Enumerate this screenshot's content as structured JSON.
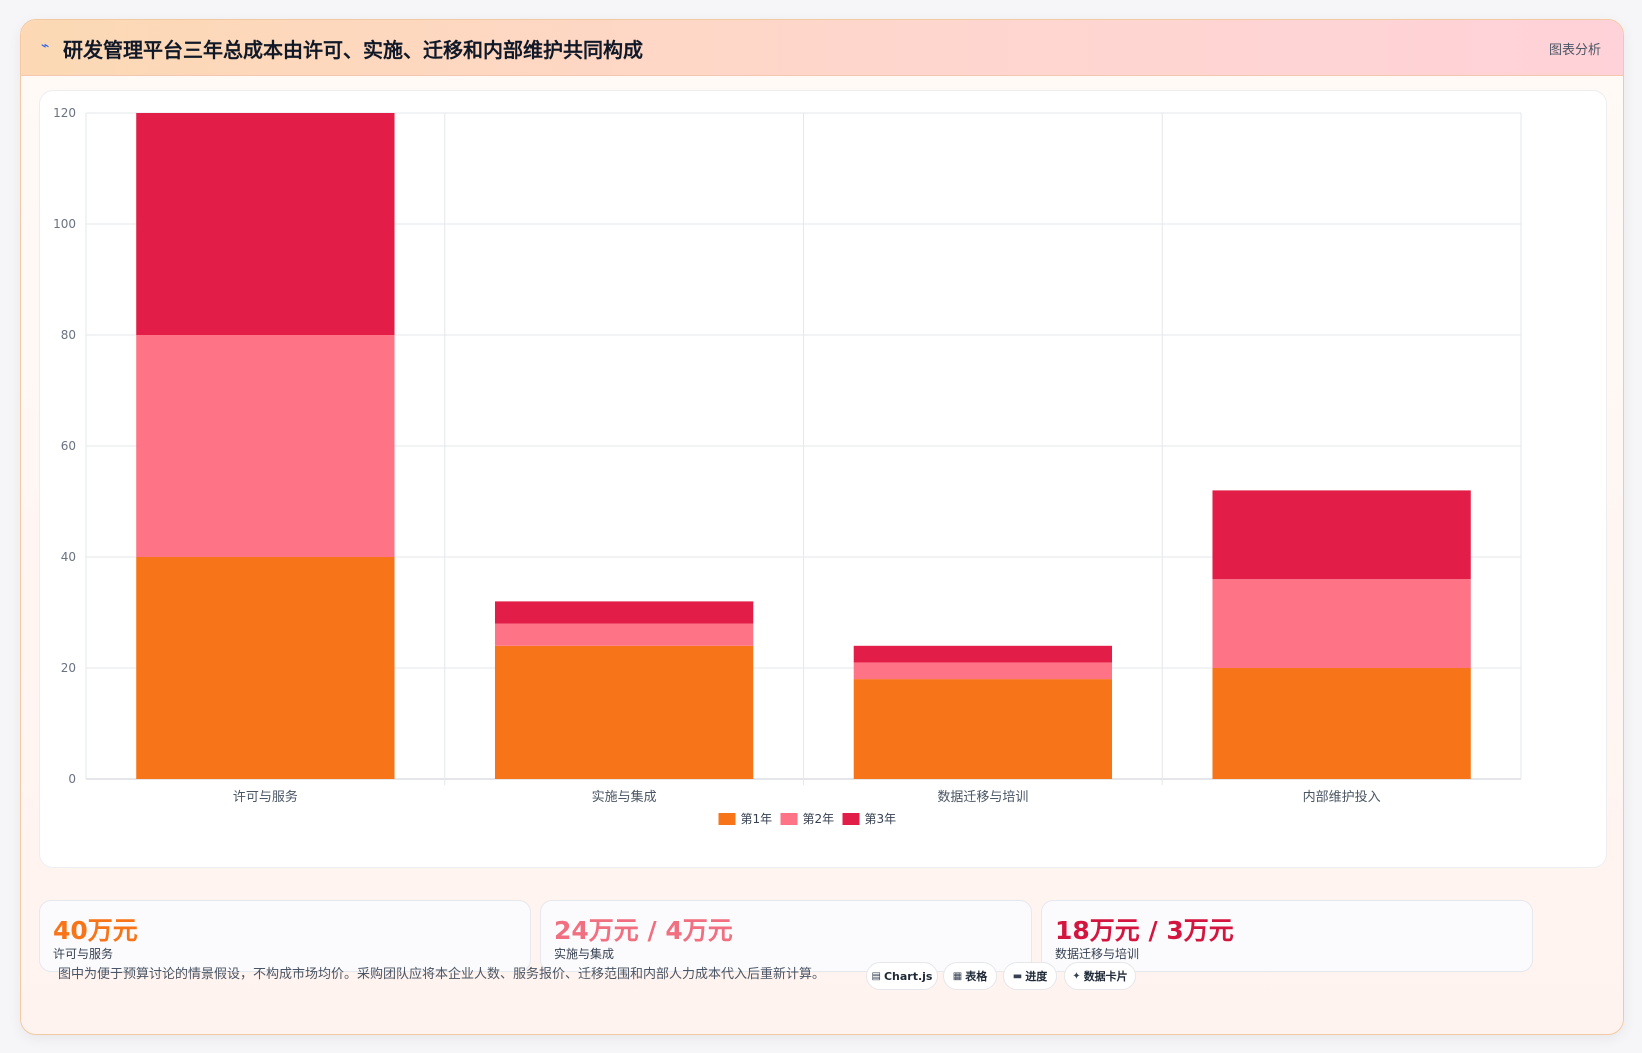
{
  "header": {
    "icon": "chart-line-icon",
    "title": "研发管理平台三年总成本由许可、实施、迁移和内部维护共同构成",
    "tag": "图表分析"
  },
  "chart_data": {
    "type": "bar",
    "stacked": true,
    "categories": [
      "许可与服务",
      "实施与集成",
      "数据迁移与培训",
      "内部维护投入"
    ],
    "series": [
      {
        "name": "第1年",
        "color": "#f77518",
        "values": [
          40,
          24,
          18,
          20
        ]
      },
      {
        "name": "第2年",
        "color": "#fe7386",
        "values": [
          40,
          4,
          3,
          16
        ]
      },
      {
        "name": "第3年",
        "color": "#e11d48",
        "values": [
          40,
          4,
          3,
          16
        ]
      }
    ],
    "ylim": [
      0,
      120
    ],
    "yticks": [
      0,
      20,
      40,
      60,
      80,
      100,
      120
    ],
    "grid": true,
    "legend_position": "bottom"
  },
  "kpis": [
    {
      "value": "40万元",
      "label": "许可与服务",
      "color": "#f77518"
    },
    {
      "value": "24万元 / 4万元",
      "label": "实施与集成",
      "color": "#f06f80"
    },
    {
      "value": "18万元 / 3万元",
      "label": "数据迁移与培训",
      "color": "#d3163f"
    }
  ],
  "footer": {
    "note": "图中为便于预算讨论的情景假设，不构成市场均价。采购团队应将本企业人数、服务报价、迁移范围和内部人力成本代入后重新计算。",
    "chips": [
      {
        "icon": "chart-icon",
        "glyph": "▤",
        "label": "Chart.js"
      },
      {
        "icon": "table-icon",
        "glyph": "▦",
        "label": "表格"
      },
      {
        "icon": "progress-icon",
        "glyph": "▬",
        "label": "进度"
      },
      {
        "icon": "sparkle-icon",
        "glyph": "✦",
        "label": "数据卡片"
      }
    ]
  }
}
